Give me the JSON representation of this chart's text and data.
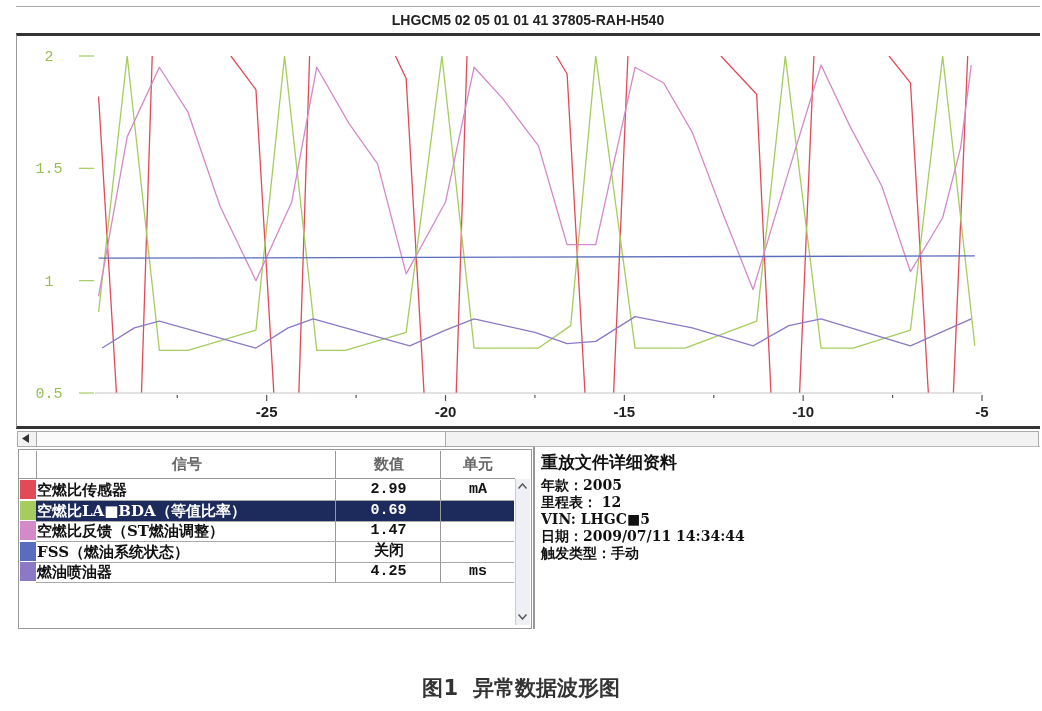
{
  "chart_data": [
    {
      "type": "line",
      "title": "LHGCM5 02 05 01 01 41 37805-RAH-H540",
      "legend_title": "信号",
      "legend": "bottom",
      "xlim": [
        -29.8,
        -5
      ],
      "xticks": [
        {
          "value": -27.5,
          "label": null
        },
        -25,
        {
          "value": -22.5,
          "label": null
        },
        -20,
        {
          "value": -17.5,
          "label": null
        },
        -15,
        {
          "value": -12.5,
          "label": null
        },
        -10,
        {
          "value": -7.5,
          "label": null
        },
        -5
      ],
      "ylim": [
        0.5,
        2
      ],
      "yticks": [
        0.5,
        1,
        1.5,
        2
      ],
      "series": [
        {
          "name": "空燃比传感器",
          "color": "#e24a58",
          "x": [
            -29.7,
            -29.2,
            -28.9,
            -28.5,
            -28.2,
            -27.1,
            -26.0,
            -25.3,
            -24.8,
            -24.5,
            -24.1,
            -23.8,
            -22.6,
            -21.4,
            -21.1,
            -20.6,
            -20.2,
            -19.7,
            -19.4,
            -17.9,
            -16.9,
            -16.6,
            -16.1,
            -15.7,
            -15.3,
            -14.9,
            -13.6,
            -12.3,
            -11.3,
            -10.9,
            -10.5,
            -10.1,
            -9.7,
            -8.6,
            -7.6,
            -7.0,
            -6.5,
            -6.1,
            -5.8,
            -5.4
          ],
          "values": [
            1.82,
            0.5,
            null,
            0.5,
            2,
            null,
            2,
            1.85,
            0.5,
            null,
            0.5,
            2,
            null,
            2,
            1.9,
            0.5,
            null,
            0.5,
            2,
            null,
            2,
            1.92,
            0.5,
            null,
            0.5,
            2,
            null,
            2,
            1.83,
            0.5,
            null,
            0.5,
            2,
            null,
            2,
            1.88,
            0.5,
            null,
            0.5,
            2
          ]
        },
        {
          "name": "空燃比LA■BDA（等值比率）",
          "color": "#a6cc5e",
          "x": [
            -29.7,
            -28.9,
            -28.0,
            -27.2,
            -25.3,
            -24.5,
            -23.6,
            -22.8,
            -21.1,
            -20.1,
            -19.2,
            -17.4,
            -16.5,
            -15.8,
            -14.7,
            -13.3,
            -11.3,
            -10.5,
            -9.5,
            -8.6,
            -7.0,
            -6.1,
            -5.2
          ],
          "values": [
            0.86,
            2,
            0.69,
            0.69,
            0.78,
            2,
            0.69,
            0.69,
            0.77,
            2,
            0.7,
            0.7,
            0.8,
            2,
            0.7,
            0.7,
            0.82,
            2,
            0.7,
            0.7,
            0.78,
            2,
            0.71
          ]
        },
        {
          "name": "空燃比反馈（ST燃油调整）",
          "color": "#d489c8",
          "x": [
            -29.7,
            -28.9,
            -28.0,
            -27.2,
            -26.3,
            -25.3,
            -24.3,
            -23.6,
            -22.7,
            -21.9,
            -21.1,
            -20.0,
            -19.2,
            -18.4,
            -17.4,
            -16.6,
            -15.8,
            -14.7,
            -13.9,
            -13.1,
            -12.2,
            -11.4,
            -10.4,
            -9.5,
            -8.7,
            -7.8,
            -7.0,
            -6.1,
            -5.6,
            -5.3
          ],
          "values": [
            0.93,
            1.64,
            1.95,
            1.75,
            1.33,
            1.0,
            1.35,
            1.95,
            1.7,
            1.52,
            1.03,
            1.35,
            1.95,
            1.81,
            1.6,
            1.16,
            1.16,
            1.95,
            1.88,
            1.66,
            1.28,
            0.96,
            1.49,
            1.96,
            1.69,
            1.42,
            1.04,
            1.28,
            1.59,
            1.96
          ]
        },
        {
          "name": "FSS（燃油系统状态）",
          "color": "#5b6cbc",
          "x": [
            -29.7,
            -5.2
          ],
          "values": [
            1.1,
            1.11
          ]
        },
        {
          "name": "燃油喷油器",
          "color": "#8c78c4",
          "x": [
            -29.6,
            -28.7,
            -28.0,
            -25.3,
            -24.4,
            -23.7,
            -21.0,
            -20.0,
            -19.2,
            -17.5,
            -16.6,
            -15.8,
            -14.7,
            -13.1,
            -11.4,
            -10.4,
            -9.5,
            -7.0,
            -5.3
          ],
          "values": [
            0.7,
            0.79,
            0.82,
            0.7,
            0.79,
            0.83,
            0.71,
            0.78,
            0.83,
            0.77,
            0.72,
            0.73,
            0.84,
            0.79,
            0.71,
            0.8,
            0.83,
            0.71,
            0.83
          ]
        }
      ],
      "annotations": [
        "数值",
        "单元",
        "2.99",
        "mA",
        "0.69",
        "1.47",
        "关闭",
        "4.25",
        "ms",
        "图1  异常数据波形图"
      ]
    },
    {
      "type": "other",
      "title": "重放文件详细资料",
      "annotations": [
        "年款：2005",
        "里程表： 12",
        "VIN: LHGC■5",
        "日期：2009/07/11 14:34:44",
        "触发类型：手动"
      ]
    }
  ]
}
